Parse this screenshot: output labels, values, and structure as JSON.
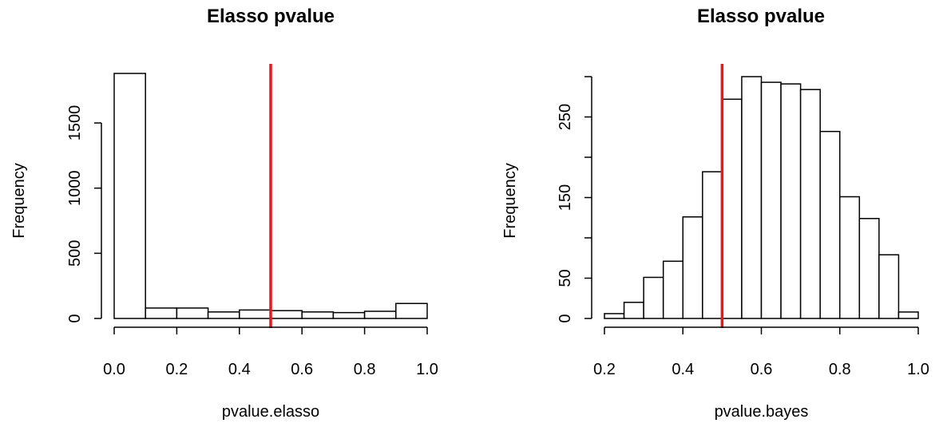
{
  "chart_data": [
    {
      "type": "bar",
      "title": "Elasso pvalue",
      "xlabel": "pvalue.elasso",
      "ylabel": "Frequency",
      "bin_edges": [
        0.0,
        0.1,
        0.2,
        0.3,
        0.4,
        0.5,
        0.6,
        0.7,
        0.8,
        0.9,
        1.0
      ],
      "values": [
        1880,
        80,
        80,
        50,
        65,
        60,
        50,
        45,
        55,
        115
      ],
      "xlim": [
        0.0,
        1.0
      ],
      "ylim": [
        0,
        1880
      ],
      "x_ticks": [
        0.0,
        0.2,
        0.4,
        0.6,
        0.8,
        1.0
      ],
      "x_tick_labels": [
        "0.0",
        "0.2",
        "0.4",
        "0.6",
        "0.8",
        "1.0"
      ],
      "y_ticks": [
        0,
        500,
        1000,
        1500
      ],
      "y_tick_labels": [
        "0",
        "500",
        "1000",
        "1500"
      ],
      "vline": {
        "x": 0.5,
        "color": "#e41a1c"
      }
    },
    {
      "type": "bar",
      "title": "Elasso pvalue",
      "xlabel": "pvalue.bayes",
      "ylabel": "Frequency",
      "bin_edges": [
        0.2,
        0.25,
        0.3,
        0.35,
        0.4,
        0.45,
        0.5,
        0.55,
        0.6,
        0.65,
        0.7,
        0.75,
        0.8,
        0.85,
        0.9,
        0.95,
        1.0
      ],
      "values": [
        6,
        20,
        51,
        71,
        126,
        182,
        272,
        300,
        293,
        291,
        284,
        232,
        151,
        124,
        79,
        8
      ],
      "xlim": [
        0.2,
        1.0
      ],
      "ylim": [
        0,
        304
      ],
      "x_ticks": [
        0.2,
        0.4,
        0.6,
        0.8,
        1.0
      ],
      "x_tick_labels": [
        "0.2",
        "0.4",
        "0.6",
        "0.8",
        "1.0"
      ],
      "y_ticks": [
        0,
        50,
        150,
        250
      ],
      "y_tick_labels": [
        "0",
        "50",
        "150",
        "250"
      ],
      "y_minor_ticks": [
        100,
        200,
        300
      ],
      "vline": {
        "x": 0.5,
        "color": "#e41a1c"
      }
    }
  ]
}
